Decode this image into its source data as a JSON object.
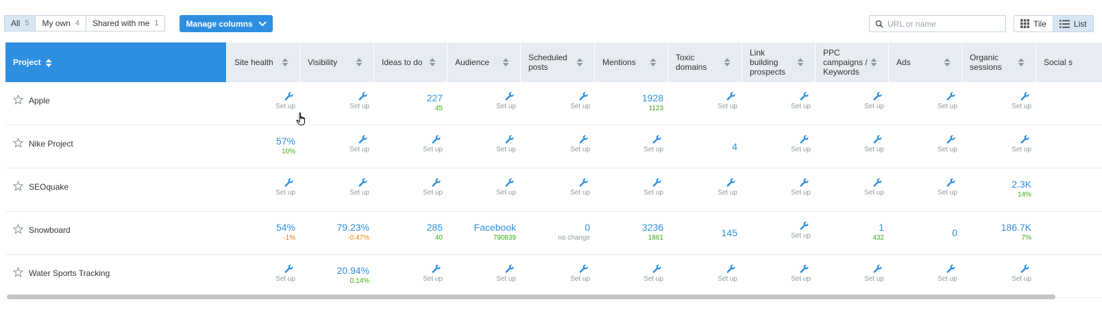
{
  "filters": [
    {
      "label": "All",
      "count": "5",
      "active": true
    },
    {
      "label": "My own",
      "count": "4",
      "active": false
    },
    {
      "label": "Shared with me",
      "count": "1",
      "active": false
    }
  ],
  "manage_columns_label": "Manage columns",
  "search": {
    "placeholder": "URL or name",
    "value": ""
  },
  "view": {
    "tile_label": "Tile",
    "list_label": "List",
    "active": "List"
  },
  "columns": [
    {
      "key": "project",
      "label": "Project"
    },
    {
      "key": "site_health",
      "label": "Site health"
    },
    {
      "key": "visibility",
      "label": "Visibility"
    },
    {
      "key": "ideas",
      "label": "Ideas to do"
    },
    {
      "key": "audience",
      "label": "Audience"
    },
    {
      "key": "scheduled",
      "label": "Scheduled posts"
    },
    {
      "key": "mentions",
      "label": "Mentions"
    },
    {
      "key": "toxic",
      "label": "Toxic domains"
    },
    {
      "key": "link",
      "label": "Link building prospects"
    },
    {
      "key": "ppc",
      "label": "PPC campaigns / Keywords"
    },
    {
      "key": "ads",
      "label": "Ads"
    },
    {
      "key": "organic",
      "label": "Organic sessions"
    },
    {
      "key": "social",
      "label": "Social s"
    }
  ],
  "setup_label": "Set up",
  "rows": [
    {
      "name": "Apple",
      "cells": {
        "site_health": null,
        "visibility": null,
        "ideas": {
          "main": "227",
          "sub": "45",
          "sub_color": "green"
        },
        "audience": null,
        "scheduled": null,
        "mentions": {
          "main": "1928",
          "sub": "1123",
          "sub_color": "green"
        },
        "toxic": null,
        "link": null,
        "ppc": null,
        "ads": null,
        "organic": null
      }
    },
    {
      "name": "Nike Project",
      "cells": {
        "site_health": {
          "main": "57%",
          "sub": "10%",
          "sub_color": "green"
        },
        "visibility": null,
        "ideas": null,
        "audience": null,
        "scheduled": null,
        "mentions": null,
        "toxic": {
          "main": "4"
        },
        "link": null,
        "ppc": null,
        "ads": null,
        "organic": null
      }
    },
    {
      "name": "SEOquake",
      "cells": {
        "site_health": null,
        "visibility": null,
        "ideas": null,
        "audience": null,
        "scheduled": null,
        "mentions": null,
        "toxic": null,
        "link": null,
        "ppc": null,
        "ads": null,
        "organic": {
          "main": "2.3K",
          "sub": "14%",
          "sub_color": "green"
        }
      }
    },
    {
      "name": "Snowboard",
      "cells": {
        "site_health": {
          "main": "54%",
          "sub": "-1%",
          "sub_color": "orange"
        },
        "visibility": {
          "main": "79.23%",
          "sub": "-0.47%",
          "sub_color": "orange"
        },
        "ideas": {
          "main": "285",
          "sub": "40",
          "sub_color": "green"
        },
        "audience": {
          "main": "Facebook",
          "sub": "790839",
          "sub_color": "green"
        },
        "scheduled": {
          "main": "0",
          "sub": "no change",
          "sub_color": "gray"
        },
        "mentions": {
          "main": "3236",
          "sub": "1861",
          "sub_color": "green"
        },
        "toxic": {
          "main": "145"
        },
        "link": null,
        "ppc": {
          "main": "1",
          "sub": "432",
          "sub_color": "green"
        },
        "ads": {
          "main": "0"
        },
        "organic": {
          "main": "186.7K",
          "sub": "7%",
          "sub_color": "green"
        }
      }
    },
    {
      "name": "Water Sports Tracking",
      "cells": {
        "site_health": null,
        "visibility": {
          "main": "20.94%",
          "sub": "0.14%",
          "sub_color": "green"
        },
        "ideas": null,
        "audience": null,
        "scheduled": null,
        "mentions": null,
        "toxic": null,
        "link": null,
        "ppc": null,
        "ads": null,
        "organic": null
      }
    }
  ],
  "colors": {
    "accent": "#2e8fe0",
    "header_bg": "#e6ecf1",
    "positive": "#3bab12",
    "negative": "#f07c00",
    "muted": "#8e98a0"
  }
}
